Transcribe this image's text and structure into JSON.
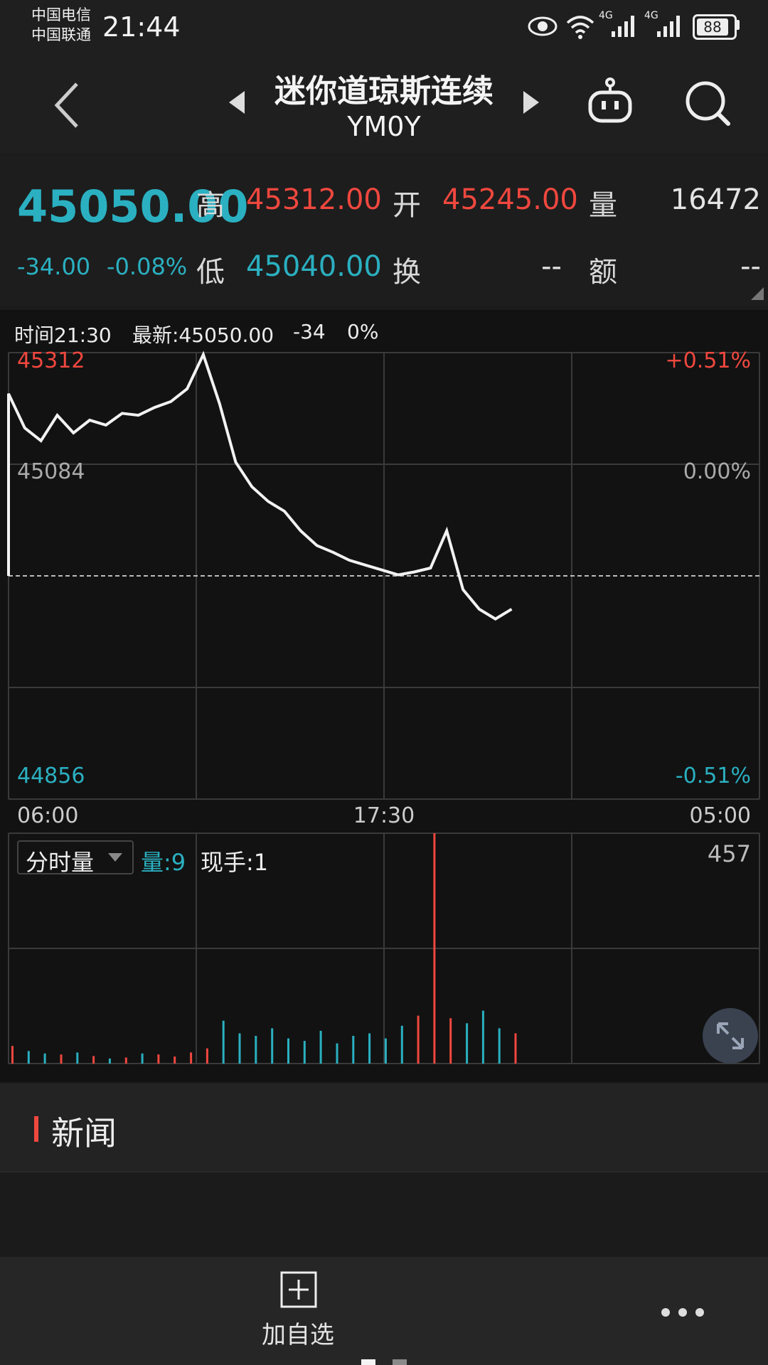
{
  "status_bar": {
    "carrier_1": "中国电信",
    "carrier_2": "中国联通",
    "time": "21:44",
    "network_1": "4G",
    "network_2": "4G",
    "battery": "88"
  },
  "header": {
    "title": "迷你道琼斯连续",
    "code": "YM0Y"
  },
  "quote": {
    "price": "45050.00",
    "change": "-34.00",
    "change_pct": "-0.08%",
    "high_label": "高",
    "high": "45312.00",
    "open_label": "开",
    "open": "45245.00",
    "volume_label": "量",
    "volume": "16472",
    "low_label": "低",
    "low": "45040.00",
    "turnover_label": "换",
    "turnover": "--",
    "amount_label": "额",
    "amount": "--"
  },
  "chart_info": {
    "time": "时间21:30",
    "latest": "最新:45050.00",
    "change": "-34",
    "pct": "0%"
  },
  "volume_panel": {
    "selector": "分时量",
    "vol": "量:9",
    "hand": "现手:1",
    "max": "457"
  },
  "news": {
    "title": "新闻"
  },
  "bottom": {
    "add_watch": "加自选"
  },
  "colors": {
    "up": "#f0473f",
    "down": "#2ab0c0",
    "line": "#f2f2f2"
  },
  "chart_data": {
    "type": "line",
    "y_labels": {
      "top": "45312",
      "mid": "45084",
      "bottom": "44856",
      "top_pct": "+0.51%",
      "mid_pct": "0.00%",
      "bottom_pct": "-0.51%"
    },
    "x_labels": [
      "06:00",
      "17:30",
      "05:00"
    ],
    "ylim": [
      44856,
      45312
    ],
    "prev_close": 45084,
    "x": [
      "06:00",
      "06:30",
      "07:00",
      "07:30",
      "08:00",
      "08:30",
      "09:00",
      "09:30",
      "10:00",
      "10:30",
      "11:00",
      "11:30",
      "12:00",
      "12:30",
      "13:00",
      "13:30",
      "14:00",
      "14:30",
      "15:00",
      "15:30",
      "16:00",
      "16:30",
      "17:00",
      "17:30",
      "18:00",
      "18:30",
      "19:00",
      "19:30",
      "20:00",
      "20:30",
      "21:00",
      "21:30"
    ],
    "series": [
      {
        "values": [
          45270,
          45235,
          45222,
          45248,
          45230,
          45243,
          45238,
          45250,
          45248,
          45256,
          45262,
          45275,
          45310,
          45260,
          45200,
          45175,
          45160,
          45150,
          45130,
          45115,
          45108,
          45100,
          45095,
          45090,
          45085,
          45088,
          45092,
          45130,
          45070,
          45050,
          45040,
          45050
        ]
      }
    ],
    "volume": [
      35,
      25,
      20,
      18,
      22,
      15,
      10,
      12,
      20,
      18,
      14,
      22,
      30,
      85,
      60,
      55,
      70,
      50,
      45,
      65,
      40,
      55,
      60,
      50,
      75,
      95,
      457,
      90,
      80,
      105,
      70,
      60
    ]
  }
}
